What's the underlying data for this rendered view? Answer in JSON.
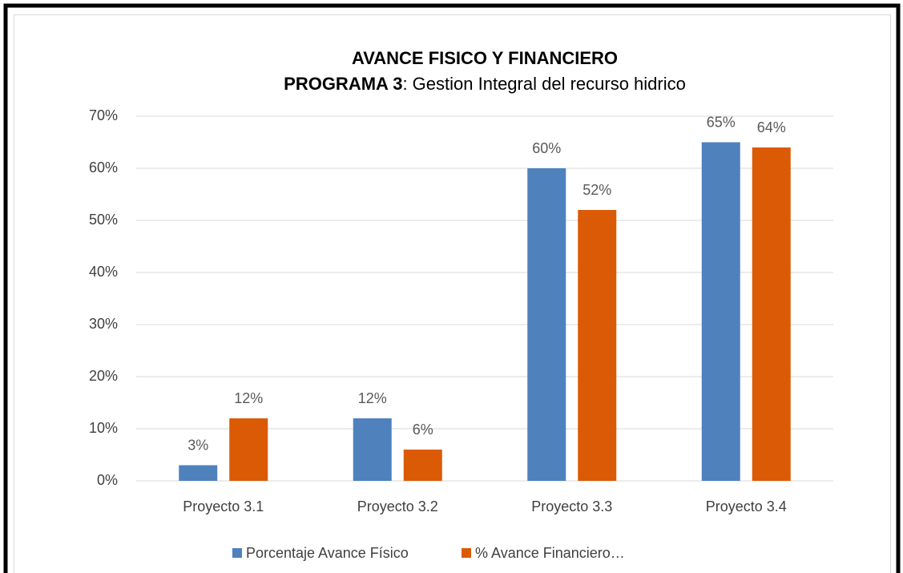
{
  "chart_data": {
    "type": "bar",
    "title": "AVANCE FISICO Y FINANCIERO",
    "subtitle": [
      "PROGRAMA 3",
      ": Gestion Integral del recurso hidrico"
    ],
    "categories": [
      "Proyecto 3.1",
      "Proyecto 3.2",
      "Proyecto 3.3",
      "Proyecto 3.4"
    ],
    "series": [
      {
        "name": "Porcentaje Avance Físico",
        "color": "#4f81bd",
        "values": [
          3,
          12,
          60,
          65
        ],
        "value_labels": [
          "3%",
          "12%",
          "60%",
          "65%"
        ]
      },
      {
        "name": "% Avance Financiero…",
        "color": "#db5a06",
        "values": [
          12,
          6,
          52,
          64
        ],
        "value_labels": [
          "12%",
          "6%",
          "52%",
          "64%"
        ]
      }
    ],
    "ylim": [
      0,
      70
    ],
    "yticks": [
      {
        "value": 0,
        "label": "0%"
      },
      {
        "value": 10,
        "label": "10%"
      },
      {
        "value": 20,
        "label": "20%"
      },
      {
        "value": 30,
        "label": "30%"
      },
      {
        "value": 40,
        "label": "40%"
      },
      {
        "value": 50,
        "label": "50%"
      },
      {
        "value": 60,
        "label": "60%"
      },
      {
        "value": 70,
        "label": "70%"
      }
    ],
    "grid": true,
    "legend": "bottom"
  }
}
